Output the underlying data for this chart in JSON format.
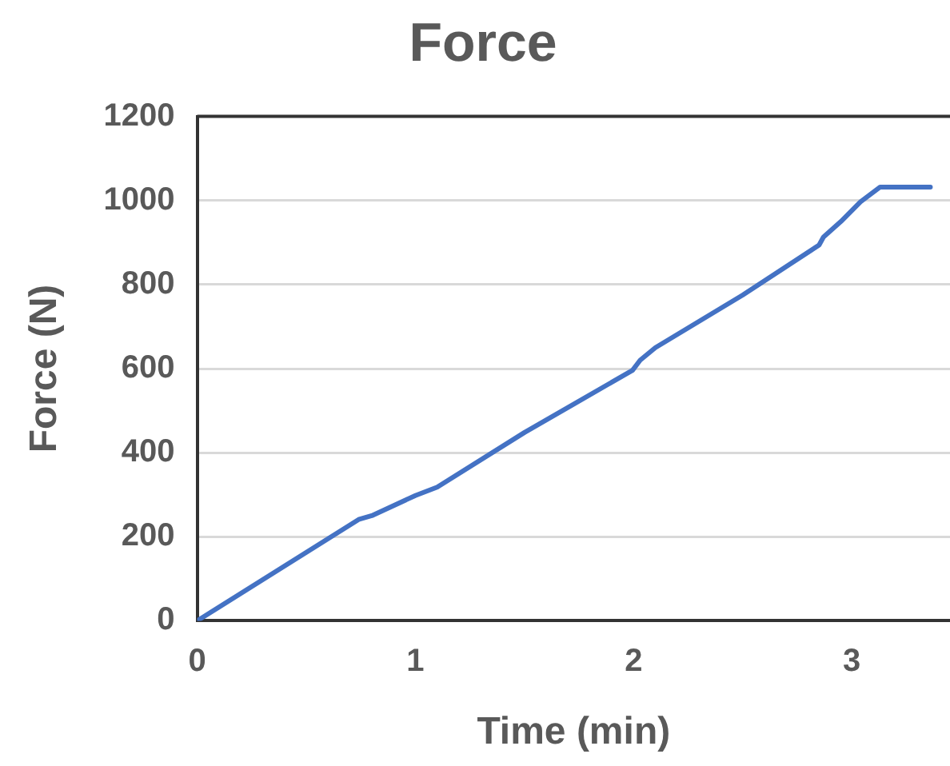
{
  "chart_data": {
    "type": "line",
    "title": "Force",
    "xlabel": "Time (min)",
    "ylabel": "Force (N)",
    "x": [
      0,
      0.74,
      0.8,
      1.0,
      1.1,
      1.5,
      1.995,
      2.03,
      2.1,
      2.5,
      2.85,
      2.87,
      2.95,
      3.04,
      3.13,
      3.2,
      3.36
    ],
    "series": [
      {
        "color": "#4472c4",
        "values": [
          0,
          241,
          250,
          298,
          318,
          448,
          596,
          620,
          650,
          775,
          894,
          913,
          950,
          997,
          1032,
          1032,
          1032
        ]
      }
    ],
    "xlim": [
      0,
      3.45
    ],
    "xticks": [
      0,
      1,
      2,
      3
    ],
    "ylim": [
      0,
      1200
    ],
    "yticks": [
      0,
      200,
      400,
      600,
      800,
      1000,
      1200
    ],
    "grid": "y",
    "legend": false,
    "marker": "none",
    "line_style": "solid"
  }
}
